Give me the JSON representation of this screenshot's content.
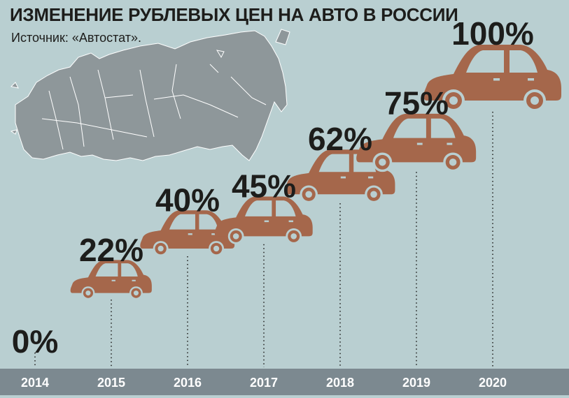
{
  "title": "ИЗМЕНЕНИЕ РУБЛЕВЫХ ЦЕН НА АВТО В РОССИИ",
  "source": "Источник: «Автостат».",
  "colors": {
    "background": "#b9cfd1",
    "car": "#a5674b",
    "map": "#8e979a",
    "axis_band": "#7c8990",
    "axis_text": "#ffffff",
    "label_text": "#1d1d1b"
  },
  "chart_data": {
    "type": "bar",
    "categories": [
      "2014",
      "2015",
      "2016",
      "2017",
      "2018",
      "2019",
      "2020"
    ],
    "values": [
      0,
      22,
      40,
      45,
      62,
      75,
      100
    ],
    "value_labels": [
      "0%",
      "22%",
      "40%",
      "45%",
      "62%",
      "75%",
      "100%"
    ],
    "ylim": [
      0,
      100
    ],
    "grid": false,
    "legend": "none"
  }
}
